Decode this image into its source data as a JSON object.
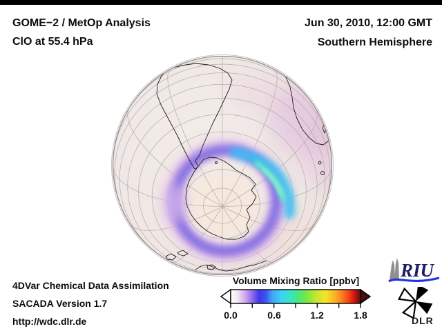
{
  "header": {
    "title_line1": "GOME−2 / MetOp Analysis",
    "title_line2": "ClO at 55.4 hPa",
    "date_line": "Jun 30, 2010, 12:00 GMT",
    "region_line": "Southern Hemisphere"
  },
  "footer": {
    "line1": "4DVar Chemical Data Assimilation",
    "line2": "SACADA Version 1.7",
    "line3": "http://wdc.dlr.de"
  },
  "colorbar": {
    "title": "Volume Mixing Ratio [ppbv]",
    "min": 0.0,
    "max": 1.8,
    "tick_labels": [
      "0.0",
      "0.6",
      "1.2",
      "1.8"
    ],
    "minor_ticks": [
      0.0,
      0.3,
      0.6,
      0.9,
      1.2,
      1.5,
      1.8
    ],
    "left_arrow_color": "#ffffff",
    "right_arrow_color": "#43100b",
    "gradient_stops": [
      {
        "at": "0%",
        "color": "#ffffff"
      },
      {
        "at": "5%",
        "color": "#f6e7f4"
      },
      {
        "at": "11%",
        "color": "#d1a9ef"
      },
      {
        "at": "17%",
        "color": "#8968ea"
      },
      {
        "at": "22%",
        "color": "#4336e6"
      },
      {
        "at": "27%",
        "color": "#3a55f2"
      },
      {
        "at": "32%",
        "color": "#45a4f8"
      },
      {
        "at": "39%",
        "color": "#3cd2f2"
      },
      {
        "at": "46%",
        "color": "#36e6c2"
      },
      {
        "at": "52%",
        "color": "#46e87c"
      },
      {
        "at": "59%",
        "color": "#7ee83e"
      },
      {
        "at": "66%",
        "color": "#c6e632"
      },
      {
        "at": "73%",
        "color": "#f4e52a"
      },
      {
        "at": "80%",
        "color": "#fbb424"
      },
      {
        "at": "86%",
        "color": "#f97c1c"
      },
      {
        "at": "91%",
        "color": "#f64214"
      },
      {
        "at": "95%",
        "color": "#d41511"
      },
      {
        "at": "100%",
        "color": "#5a100c"
      }
    ]
  },
  "logos": {
    "riu_text": "RIU",
    "dlr_text": "DLR"
  },
  "map": {
    "projection": "orthographic",
    "hemisphere": "Southern Hemisphere",
    "graticule_color": "#b5aeae",
    "coastline_color": "#1c1c1c",
    "background_tint": "#efe8e5",
    "data_layer": {
      "variable": "ClO volume mixing ratio",
      "pattern": "ring of enhanced ClO around Antarctica with cyan-green maximum (~0.9–1.0 ppbv) in the northeast sector and faint purple haze extending toward southern Africa",
      "palette_on_map": [
        "#eccbe6",
        "#c9a3e8",
        "#7263e0",
        "#38c0f2",
        "#62eec6"
      ]
    }
  }
}
